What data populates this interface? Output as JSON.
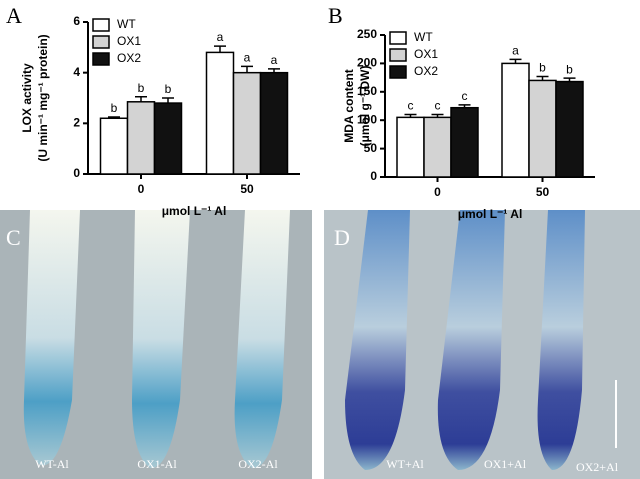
{
  "chart_data": [
    {
      "type": "bar",
      "panel": "A",
      "ylabel": [
        "LOX activity",
        "(U min⁻¹ mg⁻¹ protein)"
      ],
      "xlabel": "μmol L⁻¹ Al",
      "categories": [
        "0",
        "50"
      ],
      "ylim": [
        0,
        6
      ],
      "yticks": [
        0,
        2,
        4,
        6
      ],
      "legend": "top-left",
      "series": [
        {
          "name": "WT",
          "color": "#ffffff",
          "values": [
            2.2,
            4.8
          ],
          "errors": [
            0.05,
            0.25
          ],
          "letters": [
            "b",
            "a"
          ]
        },
        {
          "name": "OX1",
          "color": "#d3d3d3",
          "values": [
            2.85,
            4.0
          ],
          "errors": [
            0.2,
            0.25
          ],
          "letters": [
            "b",
            "a"
          ]
        },
        {
          "name": "OX2",
          "color": "#111111",
          "values": [
            2.8,
            4.0
          ],
          "errors": [
            0.2,
            0.15
          ],
          "letters": [
            "b",
            "a"
          ]
        }
      ]
    },
    {
      "type": "bar",
      "panel": "B",
      "ylabel": [
        "MDA content",
        "(μmol g⁻¹ DW)"
      ],
      "xlabel": "μmol L⁻¹ Al",
      "categories": [
        "0",
        "50"
      ],
      "ylim": [
        0,
        250
      ],
      "yticks": [
        0,
        50,
        100,
        150,
        200,
        250
      ],
      "legend": "top-left",
      "series": [
        {
          "name": "WT",
          "color": "#ffffff",
          "values": [
            105,
            200
          ],
          "errors": [
            5,
            7
          ],
          "letters": [
            "c",
            "a"
          ]
        },
        {
          "name": "OX1",
          "color": "#d3d3d3",
          "values": [
            105,
            170
          ],
          "errors": [
            5,
            7
          ],
          "letters": [
            "c",
            "b"
          ]
        },
        {
          "name": "OX2",
          "color": "#111111",
          "values": [
            122,
            168
          ],
          "errors": [
            5,
            6
          ],
          "letters": [
            "c",
            "b"
          ]
        }
      ]
    }
  ],
  "image_panels": [
    {
      "panel": "C",
      "labels": [
        "WT-Al",
        "OX1-Al",
        "OX2-Al"
      ]
    },
    {
      "panel": "D",
      "labels": [
        "WT+Al",
        "OX1+Al",
        "OX2+Al"
      ]
    }
  ]
}
